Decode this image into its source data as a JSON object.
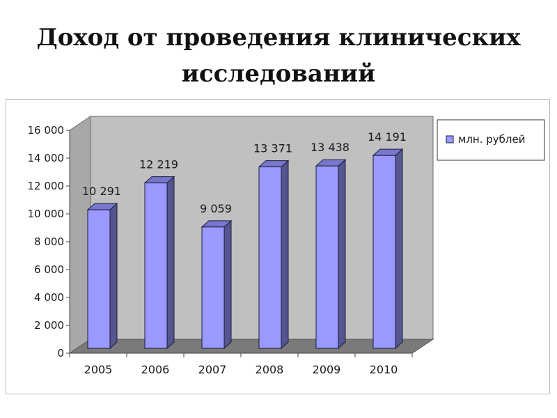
{
  "title": {
    "line1": "Доход от проведения клинических",
    "line2": "исследований"
  },
  "chart_data": {
    "type": "bar",
    "categories": [
      "2005",
      "2006",
      "2007",
      "2008",
      "2009",
      "2010"
    ],
    "values": [
      10291,
      12219,
      9059,
      13371,
      13438,
      14191
    ],
    "value_labels": [
      "10 291",
      "12 219",
      "9 059",
      "13 371",
      "13 438",
      "14 191"
    ],
    "series": [
      {
        "name": "млн. рублей",
        "values": [
          10291,
          12219,
          9059,
          13371,
          13438,
          14191
        ]
      }
    ],
    "ylim": [
      0,
      16000
    ],
    "yticks": [
      0,
      2000,
      4000,
      6000,
      8000,
      10000,
      12000,
      14000,
      16000
    ],
    "ytick_labels": [
      "0",
      "2 000",
      "4 000",
      "6 000",
      "8 000",
      "10 000",
      "12 000",
      "14 000",
      "16 000"
    ],
    "grid": false,
    "legend": "top-right",
    "style": "3d-column",
    "colors": {
      "bar_front": "#9999ff",
      "bar_top": "#7777cc",
      "bar_side": "#55558f",
      "wall": "#c0c0c0",
      "floor": "#7a7a7a"
    }
  }
}
